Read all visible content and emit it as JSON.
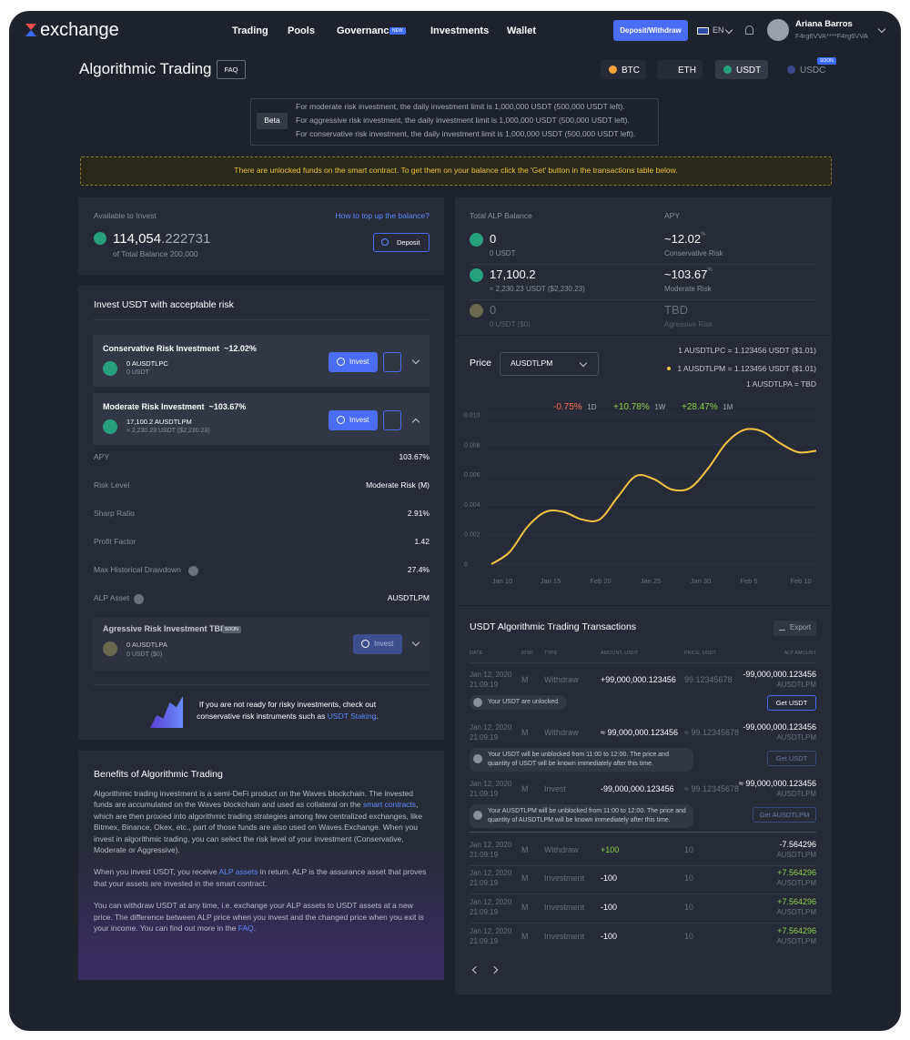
{
  "nav": {
    "logo": "exchange",
    "links": [
      "Trading",
      "Pools",
      "Governance",
      "Investments",
      "Wallet"
    ],
    "new_badge": "NEW",
    "deposit_button": "Deposit/Withdraw",
    "language": "EN",
    "user_name": "Ariana Barros",
    "user_address": "F4rg6VVA****F4rg6VVA"
  },
  "header": {
    "title": "Algorithmic Trading",
    "faq": "FAQ",
    "currencies": [
      "BTC",
      "ETH",
      "USDT",
      "USDC"
    ],
    "soon_badge": "SOON"
  },
  "beta": {
    "label": "Beta",
    "lines": [
      "For moderate risk investment, the daily investment limit is 1,000,000 USDT (500,000 USDT left).",
      "For aggressive risk investment, the daily investment limit is 1,000,000 USDT (500,000 USDT left).",
      "For conservative risk investment, the daily investment limit is 1,000,000 USDT (500,000 USDT left)."
    ]
  },
  "notice": "There are unlocked funds on the smart contract. To get them on your balance click the 'Get' button in the transactions table below.",
  "available": {
    "label": "Available to Invest",
    "link": "How to top up the balance?",
    "amount_int": "114,054",
    "amount_dec": ".222731",
    "sub": "of Total Balance 200,000",
    "button": "Deposit"
  },
  "invest_card": {
    "title": "Invest USDT with acceptable risk",
    "invest_button": "Invest",
    "products": [
      {
        "name": "Conservative Risk Investment",
        "apy": "~12.02%",
        "amount": "0 AUSDTLPC",
        "sub": "0 USDT"
      },
      {
        "name": "Moderate Risk Investment",
        "apy": "~103.67%",
        "amount": "17,100.2 AUSDTLPM",
        "sub": "≈ 2,230.23 USDT ($2,230.23)"
      }
    ],
    "details": [
      [
        "APY",
        "103.67%"
      ],
      [
        "Risk Level",
        "Moderate Risk (M)"
      ],
      [
        "Sharp Ratio",
        "2.91%"
      ],
      [
        "Profit Factor",
        "1.42"
      ],
      [
        "Max Historical Drawdown",
        "27.4%"
      ],
      [
        "ALP Asset",
        "AUSDTLPM"
      ]
    ],
    "aggressive": {
      "name": "Agressive Risk Investment TBD",
      "badge": "SOON",
      "amount": "0 AUSDTLPA",
      "sub": "0 USDT ($0)"
    },
    "promo": [
      "If you are not ready for risky investments, check out conservative risk instruments such as ",
      "USDT Staking",
      "."
    ]
  },
  "benefits": {
    "title": "Benefits of Algorithmic Trading",
    "paragraphs": [
      [
        {
          "text": "Algorithmic trading investment is a semi-DeFi product on the Waves blockchain. The invested funds are accumulated on the Waves blockchain and used as collateral on the "
        },
        {
          "link": "smart contracts"
        },
        {
          "text": ", which are then proxied into algorithmic trading strategies among few centralized exchanges, like Bitmex, Binance, Okex, etc., part of those funds are also used on Waves.Exchange. When you invest in algorithmic trading, you can select the risk level of your investment (Conservative, Moderate or Aggressive)."
        }
      ],
      [
        {
          "text": "When you invest USDT, you receive "
        },
        {
          "link": "ALP assets"
        },
        {
          "text": " in return. ALP is the assurance asset that proves that your assets are invested in the smart contract."
        }
      ],
      [
        {
          "text": "You can withdraw USDT at any time, i.e. exchange your ALP assets to USDT assets at a new price. The difference between ALP price when you invest and the changed price when you exit is your income. You can find out more in the "
        },
        {
          "link": "FAQ"
        },
        {
          "text": "."
        }
      ]
    ]
  },
  "balance": {
    "label": "Total ALP Balance",
    "apy_label": "APY",
    "rows": [
      {
        "amount": "0",
        "sub": "0 USDT",
        "apy": "~12.02",
        "apy_sup": "%",
        "risk": "Conservative Risk"
      },
      {
        "amount": "17,100.2",
        "sub": "≈ 2,230.23 USDT ($2,230.23)",
        "apy": "~103.67",
        "apy_sup": "%",
        "risk": "Moderate Risk"
      },
      {
        "amount": "0",
        "sub": "0 USDT ($0)",
        "apy": "TBD",
        "risk": "Agressive Risk"
      }
    ]
  },
  "price": {
    "label": "Price",
    "select": "AUSDTLPM",
    "rates": [
      "1 AUSDTLPC = 1.123456 USDT ($1.01)",
      "1 AUSDTLPM = 1.123456 USDT ($1.01)",
      "1 AUSDTLPA = TBD"
    ],
    "changes": [
      {
        "value": "-0.75%",
        "period": "1D"
      },
      {
        "value": "+10.78%",
        "period": "1W"
      },
      {
        "value": "+28.47%",
        "period": "1M"
      }
    ],
    "chart": {
      "type": "line",
      "color": "#f5c542",
      "ylim": [
        0,
        0.01
      ],
      "yticks": [
        0,
        0.002,
        0.004,
        0.006,
        0.008,
        {
          "value": 0.01,
          "label": "0.010"
        }
      ],
      "categories": [
        "Jan 10",
        "Jan 15",
        "Feb 20",
        "Jan 25",
        "Jan 30",
        "Feb 5",
        "Feb 10"
      ],
      "values": [
        0,
        0.0008,
        0.0025,
        0.0035,
        0.0035,
        0.003,
        0.003,
        0.0045,
        0.0059,
        0.0057,
        0.005,
        0.0051,
        0.0064,
        0.0081,
        0.009,
        0.0089,
        0.0081,
        0.0075,
        0.0076
      ]
    }
  },
  "transactions": {
    "title": "USDT Algorithmic Trading Transactions",
    "export": "Export",
    "headers": [
      "DATE",
      "RISK",
      "TYPE",
      "AMOUNT, USDT",
      "PRICE, USDT",
      "ALP AMOUNT"
    ],
    "rows": [
      {
        "date": "Jan 12, 2020",
        "time": "21:09:19",
        "risk": "M",
        "type": "Withdraw",
        "amount": "+99,000,000.123456",
        "price": "99.12345678",
        "alp": "-99,000,000.123456",
        "alp_unit": "AUSDTLPM",
        "notice": "Your USDT are unlocked.",
        "button": "Get USDT"
      },
      {
        "date": "Jan 12, 2020",
        "time": "21:09:19",
        "risk": "M",
        "type": "Withdraw",
        "amount": "≈ 99,000,000.123456",
        "price": "≈ 99.12345678",
        "alp": "-99,000,000.123456",
        "alp_unit": "AUSDTLPM",
        "notice": "Your USDT will be unblocked from 11:00 to 12:00. The price and quantity of USDT will be known immediately after this time.",
        "button": "Get USDT"
      },
      {
        "date": "Jan 12, 2020",
        "time": "21:09:19",
        "risk": "M",
        "type": "Invest",
        "amount": "-99,000,000.123456",
        "price": "≈ 99.12345678",
        "alp": "≈ 99,000,000.123456",
        "alp_unit": "AUSDTLPM",
        "notice": "Your AUSDTLPM will be unblocked from 11:00 to 12:00. The price and quantity of AUSDTLPM will be known immediately after this time.",
        "button": "Get AUSDTLPM"
      },
      {
        "date": "Jan 12, 2020",
        "time": "21:09:19",
        "risk": "M",
        "type": "Withdraw",
        "amount": "+100",
        "price": "10",
        "alp": "-7.564296",
        "alp_unit": "AUSDTLPM"
      },
      {
        "date": "Jan 12, 2020",
        "time": "21:09:19",
        "risk": "M",
        "type": "Investment",
        "amount": "-100",
        "price": "10",
        "alp": "+7.564296",
        "alp_unit": "AUSDTLPM"
      },
      {
        "date": "Jan 12, 2020",
        "time": "21:09:19",
        "risk": "M",
        "type": "Investment",
        "amount": "-100",
        "price": "10",
        "alp": "+7.564296",
        "alp_unit": "AUSDTLPM"
      },
      {
        "date": "Jan 12, 2020",
        "time": "21:09:19",
        "risk": "M",
        "type": "Investment",
        "amount": "-100",
        "price": "10",
        "alp": "+7.564296",
        "alp_unit": "AUSDTLPM"
      }
    ]
  }
}
